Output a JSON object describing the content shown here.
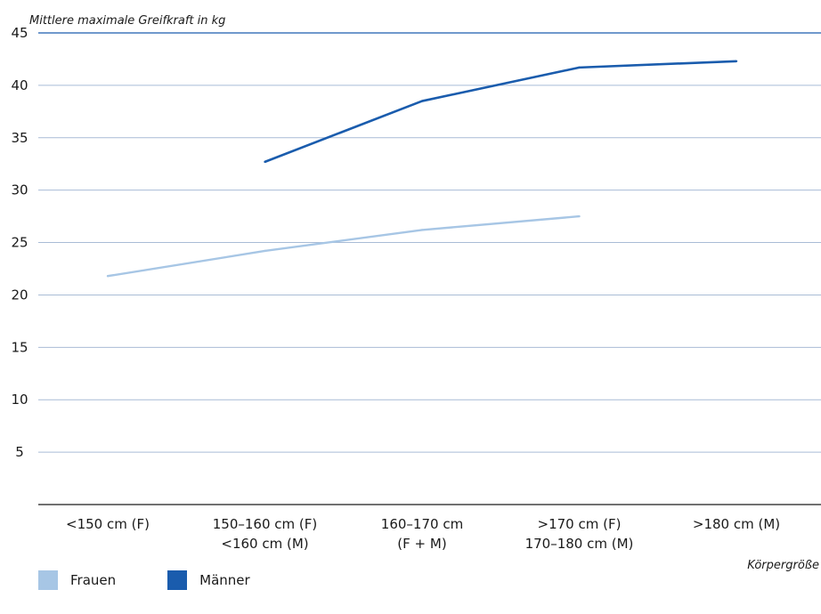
{
  "chart_data": {
    "type": "line",
    "ylabel": "Mittlere maximale Greifkraft in kg",
    "xlabel": "Körpergröße",
    "ylim": [
      0,
      45
    ],
    "yticks": [
      5,
      10,
      15,
      20,
      25,
      30,
      35,
      40,
      45
    ],
    "categories": [
      [
        "<150 cm (F)"
      ],
      [
        "150–160 cm (F)",
        "<160 cm (M)"
      ],
      [
        "160–170 cm",
        "(F + M)"
      ],
      [
        ">170 cm (F)",
        "170–180 cm (M)"
      ],
      [
        ">180 cm (M)"
      ]
    ],
    "grid": true,
    "legend_position": "bottom-left",
    "series": [
      {
        "name": "Frauen",
        "color": "#a7c6e5",
        "values": [
          21.8,
          24.2,
          26.2,
          27.5,
          null
        ]
      },
      {
        "name": "Männer",
        "color": "#1a5cad",
        "values": [
          null,
          32.7,
          38.5,
          41.7,
          42.3
        ]
      }
    ]
  }
}
